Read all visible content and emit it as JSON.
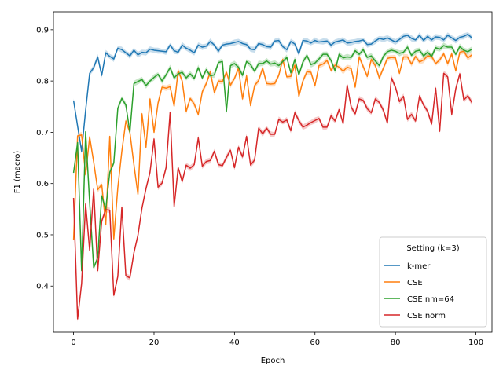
{
  "chart_data": {
    "type": "line",
    "xlabel": "Epoch",
    "ylabel": "F1 (macro)",
    "xlim": [
      -5,
      104
    ],
    "ylim": [
      0.31,
      0.935
    ],
    "xticks": [
      0,
      20,
      40,
      60,
      80,
      100
    ],
    "yticks": [
      0.4,
      0.5,
      0.6,
      0.7,
      0.8,
      0.9
    ],
    "ytick_labels": [
      "0.4",
      "0.5",
      "0.6",
      "0.7",
      "0.8",
      "0.9"
    ],
    "grid": false,
    "legend": {
      "title": "Setting (k=3)",
      "placement": "lower-right"
    },
    "series": [
      {
        "name": "k-mer",
        "color": "#1f77b4",
        "values": [
          0.762,
          0.712,
          0.663,
          0.743,
          0.815,
          0.826,
          0.847,
          0.811,
          0.855,
          0.848,
          0.843,
          0.864,
          0.861,
          0.855,
          0.849,
          0.86,
          0.851,
          0.856,
          0.855,
          0.862,
          0.86,
          0.859,
          0.858,
          0.857,
          0.87,
          0.859,
          0.856,
          0.87,
          0.864,
          0.86,
          0.855,
          0.87,
          0.866,
          0.868,
          0.877,
          0.87,
          0.858,
          0.87,
          0.872,
          0.873,
          0.875,
          0.877,
          0.873,
          0.871,
          0.862,
          0.861,
          0.873,
          0.871,
          0.867,
          0.866,
          0.878,
          0.879,
          0.867,
          0.861,
          0.877,
          0.872,
          0.853,
          0.879,
          0.878,
          0.874,
          0.879,
          0.876,
          0.877,
          0.878,
          0.87,
          0.876,
          0.878,
          0.88,
          0.874,
          0.875,
          0.877,
          0.878,
          0.88,
          0.871,
          0.872,
          0.878,
          0.883,
          0.881,
          0.884,
          0.88,
          0.876,
          0.881,
          0.887,
          0.889,
          0.883,
          0.88,
          0.889,
          0.879,
          0.887,
          0.88,
          0.886,
          0.885,
          0.88,
          0.889,
          0.884,
          0.879,
          0.885,
          0.887,
          0.891,
          0.884
        ]
      },
      {
        "name": "CSE",
        "color": "#ff7f0e",
        "values": [
          0.49,
          0.693,
          0.695,
          0.617,
          0.691,
          0.642,
          0.588,
          0.598,
          0.52,
          0.692,
          0.492,
          0.592,
          0.663,
          0.722,
          0.7,
          0.637,
          0.579,
          0.736,
          0.671,
          0.765,
          0.7,
          0.757,
          0.788,
          0.786,
          0.789,
          0.751,
          0.82,
          0.8,
          0.741,
          0.766,
          0.755,
          0.735,
          0.779,
          0.795,
          0.818,
          0.777,
          0.8,
          0.799,
          0.817,
          0.792,
          0.805,
          0.825,
          0.765,
          0.81,
          0.752,
          0.791,
          0.801,
          0.825,
          0.795,
          0.794,
          0.795,
          0.811,
          0.842,
          0.808,
          0.809,
          0.831,
          0.77,
          0.8,
          0.818,
          0.817,
          0.791,
          0.83,
          0.833,
          0.84,
          0.821,
          0.831,
          0.827,
          0.819,
          0.827,
          0.824,
          0.788,
          0.847,
          0.828,
          0.809,
          0.842,
          0.83,
          0.806,
          0.825,
          0.844,
          0.846,
          0.845,
          0.815,
          0.847,
          0.847,
          0.833,
          0.848,
          0.837,
          0.841,
          0.849,
          0.848,
          0.834,
          0.841,
          0.853,
          0.834,
          0.853,
          0.82,
          0.856,
          0.858,
          0.845,
          0.851
        ]
      },
      {
        "name": "CSE nm=64",
        "color": "#2ca02c",
        "values": [
          0.621,
          0.68,
          0.43,
          0.701,
          0.563,
          0.436,
          0.455,
          0.576,
          0.55,
          0.622,
          0.64,
          0.747,
          0.766,
          0.753,
          0.7,
          0.795,
          0.799,
          0.803,
          0.791,
          0.8,
          0.807,
          0.813,
          0.8,
          0.812,
          0.826,
          0.806,
          0.814,
          0.817,
          0.806,
          0.814,
          0.805,
          0.826,
          0.806,
          0.822,
          0.81,
          0.812,
          0.836,
          0.838,
          0.741,
          0.83,
          0.834,
          0.827,
          0.811,
          0.838,
          0.832,
          0.819,
          0.834,
          0.834,
          0.839,
          0.833,
          0.835,
          0.83,
          0.838,
          0.846,
          0.816,
          0.842,
          0.812,
          0.837,
          0.85,
          0.832,
          0.835,
          0.843,
          0.852,
          0.852,
          0.84,
          0.82,
          0.852,
          0.845,
          0.847,
          0.846,
          0.859,
          0.852,
          0.861,
          0.846,
          0.849,
          0.839,
          0.83,
          0.848,
          0.857,
          0.86,
          0.858,
          0.854,
          0.856,
          0.866,
          0.85,
          0.858,
          0.86,
          0.849,
          0.856,
          0.848,
          0.865,
          0.862,
          0.869,
          0.866,
          0.866,
          0.852,
          0.867,
          0.86,
          0.857,
          0.862
        ]
      },
      {
        "name": "CSE norm",
        "color": "#d62728",
        "values": [
          0.572,
          0.336,
          0.405,
          0.56,
          0.47,
          0.589,
          0.43,
          0.527,
          0.549,
          0.548,
          0.382,
          0.419,
          0.554,
          0.42,
          0.416,
          0.465,
          0.499,
          0.552,
          0.59,
          0.622,
          0.687,
          0.593,
          0.601,
          0.631,
          0.739,
          0.555,
          0.631,
          0.604,
          0.636,
          0.63,
          0.637,
          0.689,
          0.634,
          0.643,
          0.645,
          0.663,
          0.637,
          0.635,
          0.651,
          0.665,
          0.631,
          0.671,
          0.652,
          0.692,
          0.636,
          0.646,
          0.708,
          0.697,
          0.708,
          0.696,
          0.696,
          0.725,
          0.72,
          0.724,
          0.703,
          0.738,
          0.723,
          0.71,
          0.714,
          0.719,
          0.723,
          0.727,
          0.71,
          0.71,
          0.732,
          0.722,
          0.744,
          0.717,
          0.792,
          0.749,
          0.736,
          0.765,
          0.762,
          0.746,
          0.738,
          0.765,
          0.758,
          0.743,
          0.718,
          0.806,
          0.788,
          0.76,
          0.77,
          0.725,
          0.735,
          0.722,
          0.771,
          0.753,
          0.741,
          0.716,
          0.786,
          0.702,
          0.815,
          0.808,
          0.735,
          0.785,
          0.814,
          0.763,
          0.771,
          0.758
        ]
      }
    ]
  }
}
